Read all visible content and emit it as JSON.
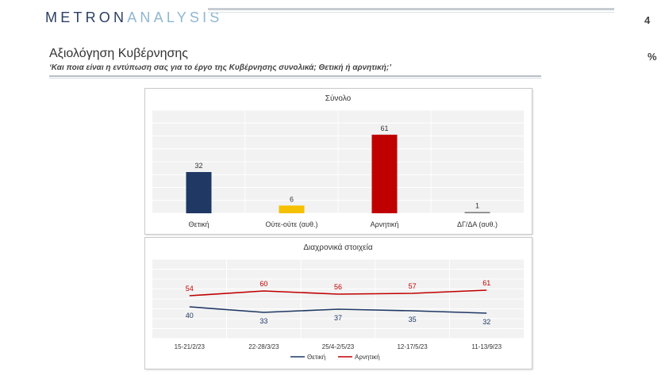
{
  "header": {
    "logo_main": "METRON",
    "logo_accent": "ANALYSIS",
    "page_number": "4",
    "title": "Αξιολόγηση Κυβέρνησης",
    "subtitle": "‘Και ποια είναι η εντύπωση σας για το έργο της Κυβέρνησης συνολικά; Θετική ή αρνητική;’",
    "unit": "%"
  },
  "chart_data": [
    {
      "type": "bar",
      "title": "Σύνολο",
      "categories": [
        "Θετική",
        "Ούτε-ούτε (αυθ.)",
        "Αρνητική",
        "ΔΓ/ΔΑ (αυθ.)"
      ],
      "values": [
        32,
        6,
        61,
        1
      ],
      "colors": [
        "#1f3864",
        "#f5c000",
        "#c00000",
        "#7f7f7f"
      ],
      "ylim": [
        0,
        80
      ],
      "grid": true
    },
    {
      "type": "line",
      "title": "Διαχρονικά στοιχεία",
      "categories": [
        "15-21/2/23",
        "22-28/3/23",
        "25/4-2/5/23",
        "12-17/5/23",
        "11-13/9/23"
      ],
      "series": [
        {
          "name": "Θετική",
          "color": "#1f3864",
          "values": [
            40,
            33,
            37,
            35,
            32
          ]
        },
        {
          "name": "Αρνητική",
          "color": "#c00000",
          "values": [
            54,
            60,
            56,
            57,
            61
          ]
        }
      ],
      "ylim": [
        0,
        100
      ],
      "grid": true,
      "legend_position": "bottom"
    }
  ]
}
